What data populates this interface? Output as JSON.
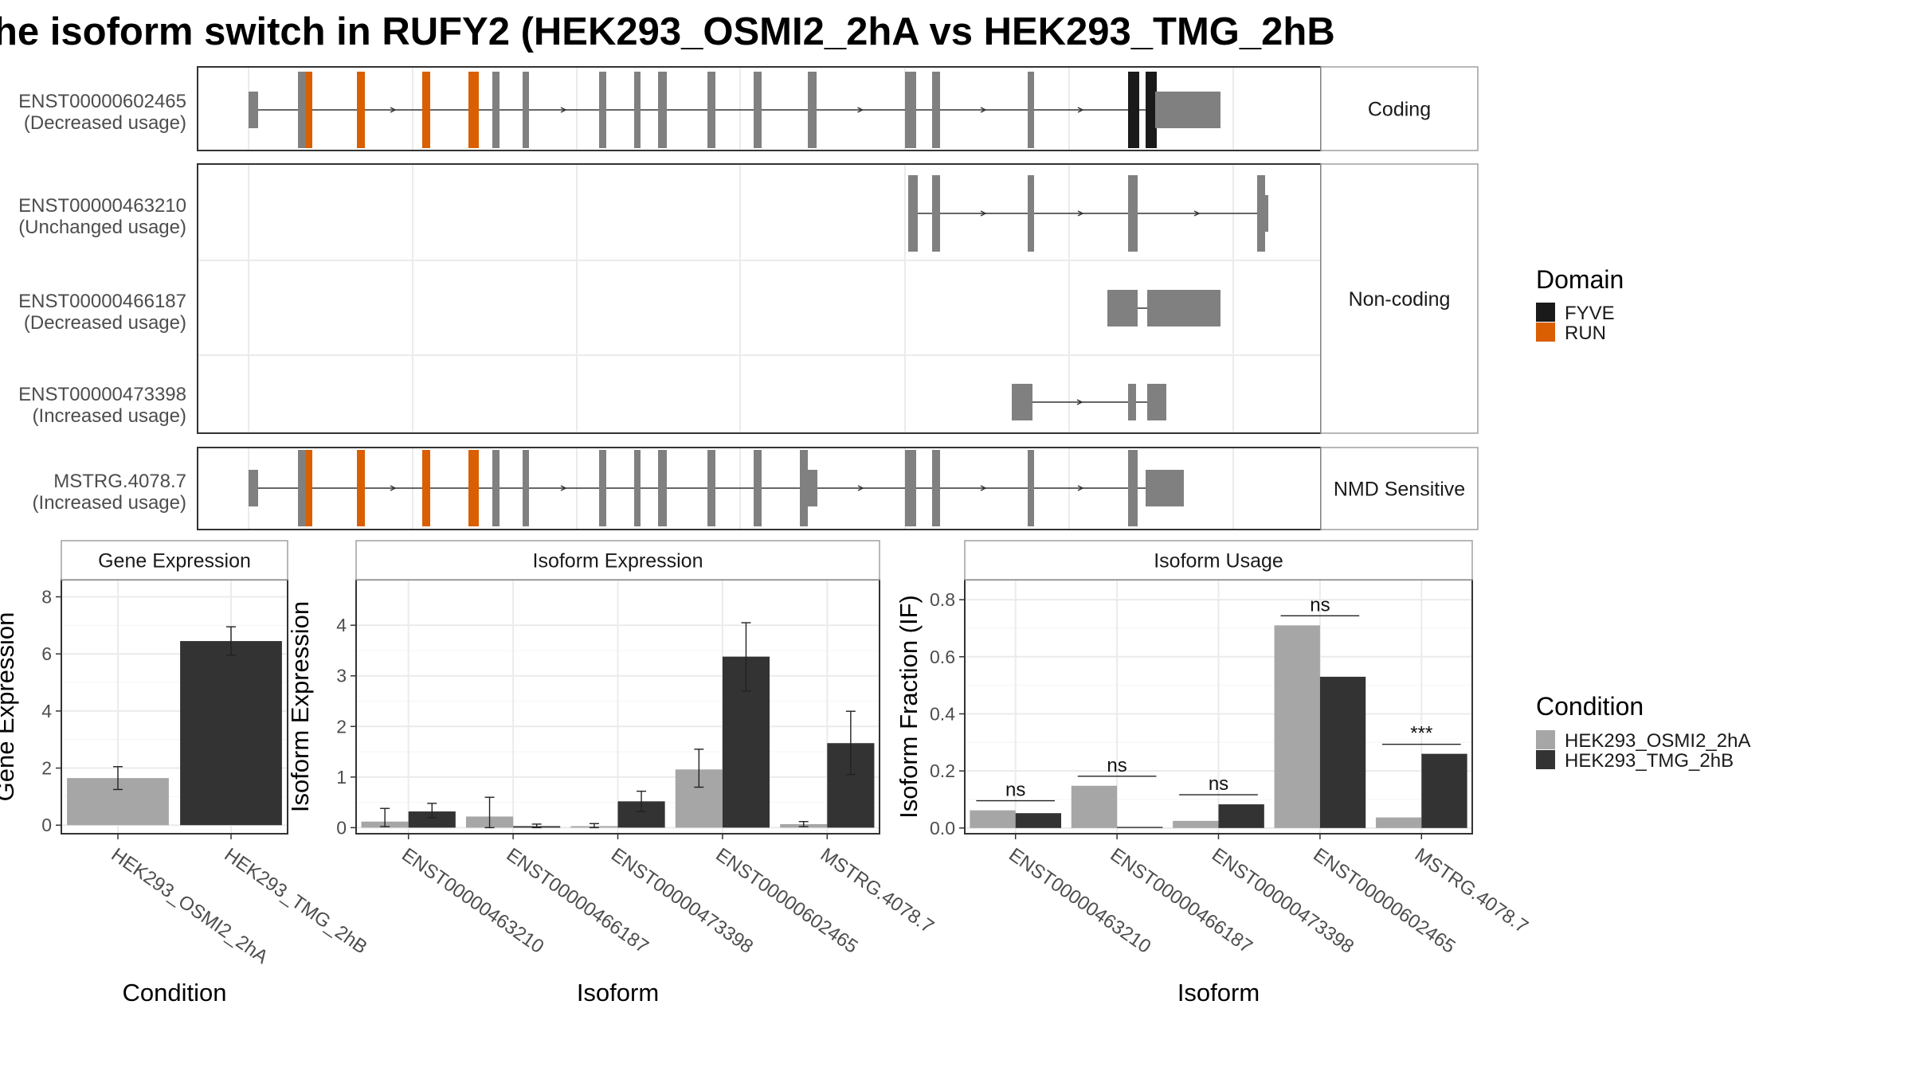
{
  "title": "he isoform switch in RUFY2 (HEK293_OSMI2_2hA vs HEK293_TMG_2hB",
  "colors": {
    "intron_line": "#333333",
    "exon": "#808080",
    "FYVE": "#1a1a1a",
    "RUN": "#d95f02",
    "cond_A": "#a6a6a6",
    "cond_B": "#333333",
    "strip_bg": "#ffffff",
    "grid": "#ebebeb",
    "panel_border": "#333333"
  },
  "structure": {
    "facets": [
      {
        "label": "Coding",
        "transcripts": [
          "ENST00000602465"
        ]
      },
      {
        "label": "Non-coding",
        "transcripts": [
          "ENST00000463210",
          "ENST00000466187",
          "ENST00000473398"
        ]
      },
      {
        "label": "NMD Sensitive",
        "transcripts": [
          "MSTRG.4078.7"
        ]
      }
    ],
    "transcripts": [
      {
        "id": "ENST00000602465",
        "usage": "(Decreased usage)"
      },
      {
        "id": "ENST00000463210",
        "usage": "(Unchanged usage)"
      },
      {
        "id": "ENST00000466187",
        "usage": "(Decreased usage)"
      },
      {
        "id": "ENST00000473398",
        "usage": "(Increased usage)"
      },
      {
        "id": "MSTRG.4078.7",
        "usage": "(Increased usage)"
      }
    ],
    "legend": {
      "title": "Domain",
      "items": [
        {
          "label": "FYVE",
          "color": "#1a1a1a"
        },
        {
          "label": "RUN",
          "color": "#d95f02"
        }
      ]
    }
  },
  "chart_data": [
    {
      "type": "bar",
      "title": "Gene Expression",
      "xlabel": "Condition",
      "ylabel": "Gene Expression",
      "categories": [
        "HEK293_OSMI2_2hA",
        "HEK293_TMG_2hB"
      ],
      "values": [
        1.65,
        6.45
      ],
      "error": [
        [
          1.25,
          2.05
        ],
        [
          5.95,
          6.95
        ]
      ],
      "ylim": [
        -0.3,
        8.6
      ],
      "yticks": [
        0,
        2,
        4,
        6,
        8
      ]
    },
    {
      "type": "bar",
      "title": "Isoform Expression",
      "xlabel": "Isoform",
      "ylabel": "Isoform Expression",
      "categories": [
        "ENST00000463210",
        "ENST00000466187",
        "ENST00000473398",
        "ENST00000602465",
        "MSTRG.4078.7"
      ],
      "series": [
        {
          "name": "HEK293_OSMI2_2hA",
          "values": [
            0.12,
            0.22,
            0.03,
            1.15,
            0.07
          ],
          "error": [
            [
              0.02,
              0.38
            ],
            [
              0.0,
              0.6
            ],
            [
              0.0,
              0.08
            ],
            [
              0.8,
              1.55
            ],
            [
              0.02,
              0.12
            ]
          ]
        },
        {
          "name": "HEK293_TMG_2hB",
          "values": [
            0.32,
            0.03,
            0.52,
            3.38,
            1.67
          ],
          "error": [
            [
              0.2,
              0.48
            ],
            [
              0.0,
              0.07
            ],
            [
              0.32,
              0.72
            ],
            [
              2.7,
              4.05
            ],
            [
              1.05,
              2.3
            ]
          ]
        }
      ],
      "ylim": [
        -0.12,
        4.9
      ],
      "yticks": [
        0,
        1,
        2,
        3,
        4
      ]
    },
    {
      "type": "bar",
      "title": "Isoform Usage",
      "xlabel": "Isoform",
      "ylabel": "Isoform Fraction (IF)",
      "categories": [
        "ENST00000463210",
        "ENST00000466187",
        "ENST00000473398",
        "ENST00000602465",
        "MSTRG.4078.7"
      ],
      "series": [
        {
          "name": "HEK293_OSMI2_2hA",
          "values": [
            0.062,
            0.148,
            0.025,
            0.71,
            0.037
          ]
        },
        {
          "name": "HEK293_TMG_2hB",
          "values": [
            0.052,
            0.004,
            0.083,
            0.53,
            0.26
          ]
        }
      ],
      "significance": [
        "ns",
        "ns",
        "ns",
        "ns",
        "***"
      ],
      "ylim": [
        -0.02,
        0.87
      ],
      "yticks": [
        "0.0",
        "0.2",
        "0.4",
        "0.6",
        "0.8"
      ],
      "legend": {
        "title": "Condition",
        "placement": "right"
      }
    }
  ]
}
